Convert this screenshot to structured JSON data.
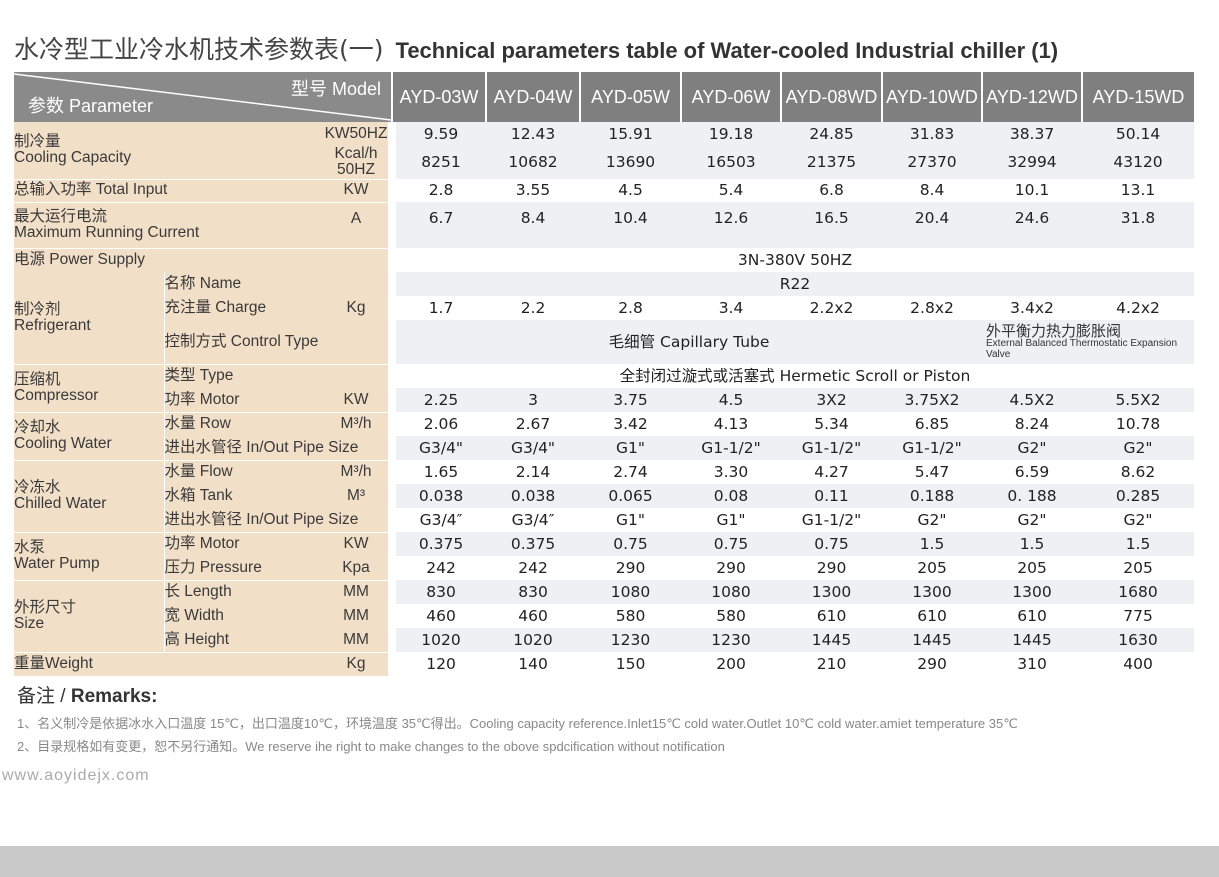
{
  "title": {
    "zh": "水冷型工业冷水机技术参数表(一)",
    "en": "Technical parameters table of Water-cooled Industrial chiller (1)"
  },
  "header": {
    "model_label": "型号 Model",
    "param_label": "参数 Parameter",
    "models": [
      "AYD-03W",
      "AYD-04W",
      "AYD-05W",
      "AYD-06W",
      "AYD-08WD",
      "AYD-10WD",
      "AYD-12WD",
      "AYD-15WD"
    ]
  },
  "rows": {
    "cooling_capacity": {
      "label_zh": "制冷量",
      "label_en": "Cooling Capacity",
      "unit_kw": "KW50HZ",
      "unit_kcal": "Kcal/h 50HZ",
      "kw": [
        "9.59",
        "12.43",
        "15.91",
        "19.18",
        "24.85",
        "31.83",
        "38.37",
        "50.14"
      ],
      "kcal": [
        "8251",
        "10682",
        "13690",
        "16503",
        "21375",
        "27370",
        "32994",
        "43120"
      ]
    },
    "total_input": {
      "label": "总输入功率 Total Input",
      "unit": "KW",
      "values": [
        "2.8",
        "3.55",
        "4.5",
        "5.4",
        "6.8",
        "8.4",
        "10.1",
        "13.1"
      ]
    },
    "max_current": {
      "label_zh": "最大运行电流",
      "label_en": "Maximum Running Current",
      "unit": "A",
      "values": [
        "6.7",
        "8.4",
        "10.4",
        "12.6",
        "16.5",
        "20.4",
        "24.6",
        "31.8"
      ]
    },
    "power_supply": {
      "label": "电源 Power Supply",
      "value": "3N-380V  50HZ"
    },
    "refrigerant": {
      "label_zh": "制冷剂",
      "label_en": "Refrigerant",
      "name_label": "名称 Name",
      "name_value": "R22",
      "charge_label": "充注量 Charge",
      "charge_unit": "Kg",
      "charge_values": [
        "1.7",
        "2.2",
        "2.8",
        "3.4",
        "2.2x2",
        "2.8x2",
        "3.4x2",
        "4.2x2"
      ],
      "control_label": "控制方式 Control Type",
      "control_value": "毛细管 Capillary Tube",
      "control_value_alt_zh": "外平衡力热力膨胀阀",
      "control_value_alt_en": "External Balanced Thermostatic Expansion Valve"
    },
    "compressor": {
      "label_zh": "压缩机",
      "label_en": "Compressor",
      "type_label": "类型 Type",
      "type_value": "全封闭过漩式或活塞式 Hermetic Scroll or Piston",
      "motor_label": "功率 Motor",
      "motor_unit": "KW",
      "motor_values": [
        "2.25",
        "3",
        "3.75",
        "4.5",
        "3X2",
        "3.75X2",
        "4.5X2",
        "5.5X2"
      ]
    },
    "cooling_water": {
      "label_zh": "冷却水",
      "label_en": "Cooling Water",
      "row_label": "水量 Row",
      "row_unit": "M³/h",
      "row_values": [
        "2.06",
        "2.67",
        "3.42",
        "4.13",
        "5.34",
        "6.85",
        "8.24",
        "10.78"
      ],
      "pipe_label": "进出水管径 In/Out Pipe Size",
      "pipe_values": [
        "G3/4\"",
        "G3/4\"",
        "G1\"",
        "G1-1/2\"",
        "G1-1/2\"",
        "G1-1/2\"",
        "G2\"",
        "G2\""
      ]
    },
    "chilled_water": {
      "label_zh": "冷冻水",
      "label_en": "Chilled Water",
      "flow_label": "水量 Flow",
      "flow_unit": "M³/h",
      "flow_values": [
        "1.65",
        "2.14",
        "2.74",
        "3.30",
        "4.27",
        "5.47",
        "6.59",
        "8.62"
      ],
      "tank_label": "水箱 Tank",
      "tank_unit": "M³",
      "tank_values": [
        "0.038",
        "0.038",
        "0.065",
        "0.08",
        "0.11",
        "0.188",
        "0. 188",
        "0.285"
      ],
      "pipe_label": "进出水管径 In/Out Pipe Size",
      "pipe_values": [
        "G3/4″",
        "G3/4″",
        "G1\"",
        "G1\"",
        "G1-1/2\"",
        "G2\"",
        "G2\"",
        "G2\""
      ]
    },
    "water_pump": {
      "label_zh": "水泵",
      "label_en": "Water Pump",
      "motor_label": "功率 Motor",
      "motor_unit": "KW",
      "motor_values": [
        "0.375",
        "0.375",
        "0.75",
        "0.75",
        "0.75",
        "1.5",
        "1.5",
        "1.5"
      ],
      "pressure_label": "压力 Pressure",
      "pressure_unit": "Kpa",
      "pressure_values": [
        "242",
        "242",
        "290",
        "290",
        "290",
        "205",
        "205",
        "205"
      ]
    },
    "size": {
      "label_zh": "外形尺寸",
      "label_en": "Size",
      "length_label": "长 Length",
      "width_label": "宽 Width",
      "height_label": "高 Height",
      "unit": "MM",
      "length_values": [
        "830",
        "830",
        "1080",
        "1080",
        "1300",
        "1300",
        "1300",
        "1680"
      ],
      "width_values": [
        "460",
        "460",
        "580",
        "580",
        "610",
        "610",
        "610",
        "775"
      ],
      "height_values": [
        "1020",
        "1020",
        "1230",
        "1230",
        "1445",
        "1445",
        "1445",
        "1630"
      ]
    },
    "weight": {
      "label": "重量Weight",
      "unit": "Kg",
      "values": [
        "120",
        "140",
        "150",
        "200",
        "210",
        "290",
        "310",
        "400"
      ]
    }
  },
  "remarks": {
    "zh": "备注 / ",
    "en": "Remarks:",
    "note1": "1、名义制冷是依据冰水入口温度 15℃，出口温度10℃，环境温度 35℃得出。Cooling capacity reference.Inlet15℃ cold water.Outlet 10℃ cold water.amiet temperature 35℃",
    "note2": "2、目录规格如有变更，恕不另行通知。We reserve ihe right to make changes to the obove spdcification without notification"
  },
  "watermark": "www.aoyidejx.com"
}
